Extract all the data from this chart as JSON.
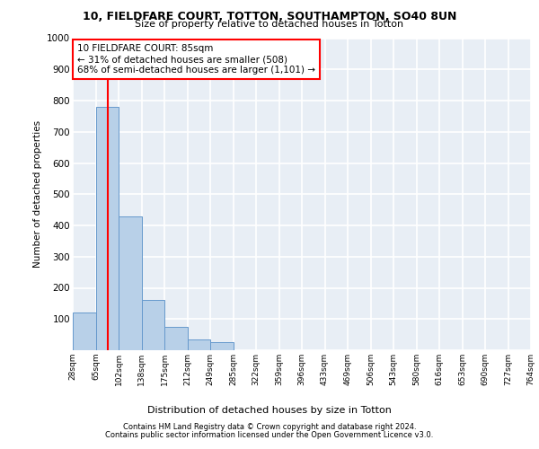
{
  "title_line1": "10, FIELDFARE COURT, TOTTON, SOUTHAMPTON, SO40 8UN",
  "title_line2": "Size of property relative to detached houses in Totton",
  "xlabel": "Distribution of detached houses by size in Totton",
  "ylabel": "Number of detached properties",
  "footer_line1": "Contains HM Land Registry data © Crown copyright and database right 2024.",
  "footer_line2": "Contains public sector information licensed under the Open Government Licence v3.0.",
  "bin_labels": [
    "28sqm",
    "65sqm",
    "102sqm",
    "138sqm",
    "175sqm",
    "212sqm",
    "249sqm",
    "285sqm",
    "322sqm",
    "359sqm",
    "396sqm",
    "433sqm",
    "469sqm",
    "506sqm",
    "543sqm",
    "580sqm",
    "616sqm",
    "653sqm",
    "690sqm",
    "727sqm",
    "764sqm"
  ],
  "bar_values": [
    120,
    780,
    430,
    160,
    75,
    35,
    25,
    0,
    0,
    0,
    0,
    0,
    0,
    0,
    0,
    0,
    0,
    0,
    0,
    0
  ],
  "bar_color": "#b8d0e8",
  "bar_edgecolor": "#6699cc",
  "annotation_text": "10 FIELDFARE COURT: 85sqm\n← 31% of detached houses are smaller (508)\n68% of semi-detached houses are larger (1,101) →",
  "annotation_box_color": "white",
  "annotation_box_edgecolor": "red",
  "vline_color": "red",
  "ylim": [
    0,
    1000
  ],
  "yticks": [
    0,
    100,
    200,
    300,
    400,
    500,
    600,
    700,
    800,
    900,
    1000
  ],
  "plot_bg_color": "#e8eef5",
  "grid_color": "#d0d8e4"
}
